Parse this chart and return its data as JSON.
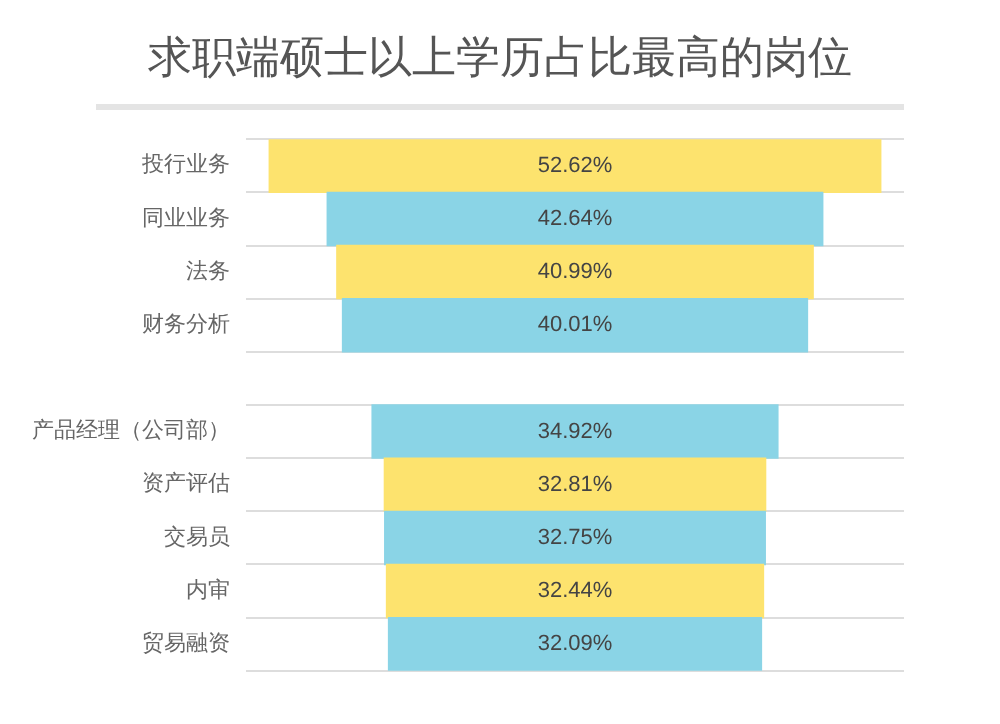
{
  "chart_data": {
    "type": "other",
    "title": "求职端硕士以上学历占比最高的岗位",
    "categories": [
      "投行业务",
      "同业业务",
      "法务",
      "财务分析",
      null,
      "产品经理（公司部）",
      "资产评估",
      "交易员",
      "内审",
      "贸易融资"
    ],
    "values": [
      52.62,
      42.64,
      40.99,
      40.01,
      null,
      34.92,
      32.81,
      32.75,
      32.44,
      32.09
    ],
    "value_labels": [
      "52.62%",
      "42.64%",
      "40.99%",
      "40.01%",
      null,
      "34.92%",
      "32.81%",
      "32.75%",
      "32.44%",
      "32.09%"
    ],
    "colors": [
      "#fde36e",
      "#8ad4e6",
      "#fde36e",
      "#8ad4e6",
      null,
      "#8ad4e6",
      "#fde36e",
      "#8ad4e6",
      "#fde36e",
      "#8ad4e6"
    ]
  }
}
